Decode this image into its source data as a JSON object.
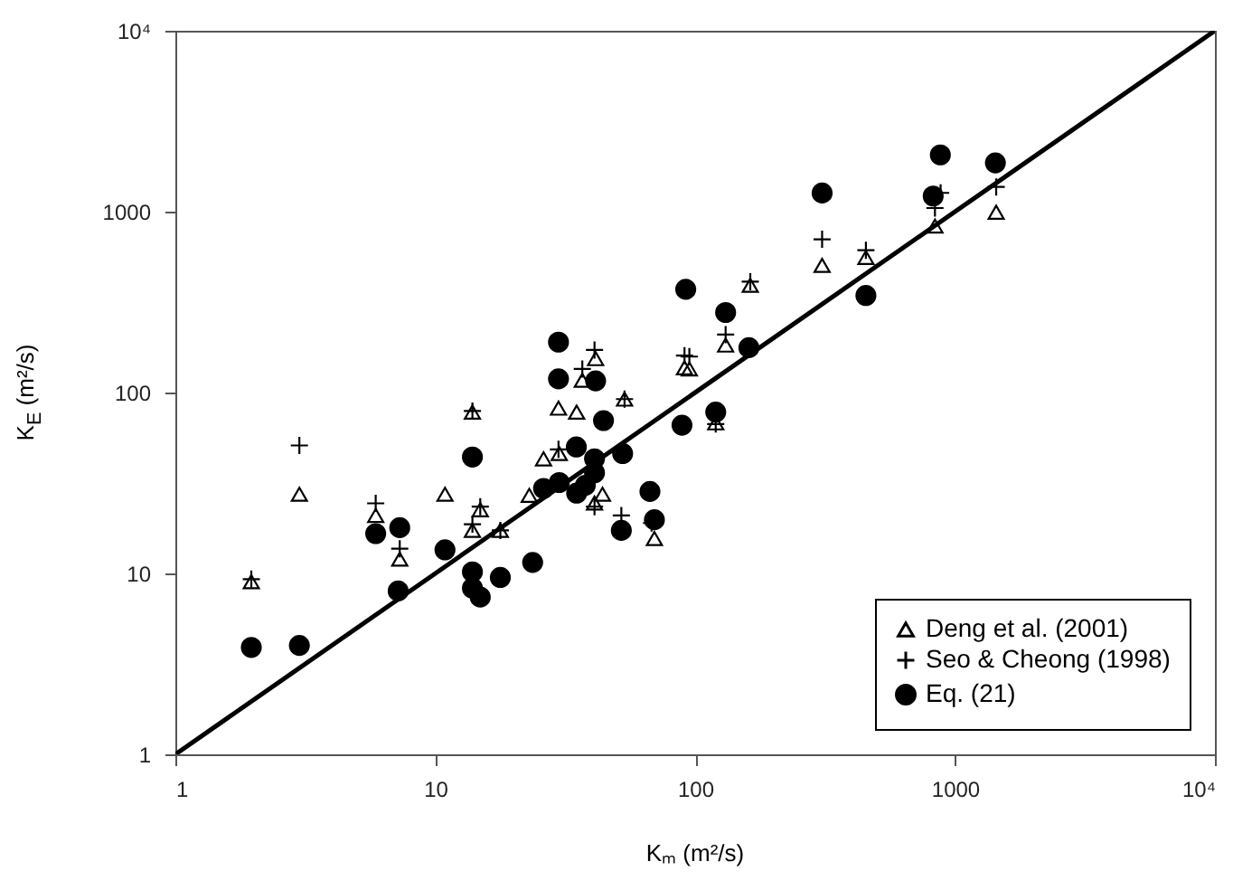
{
  "chart_data": {
    "type": "scatter",
    "xlabel": "Kₘ (m²/s)",
    "ylabel": "K$_{E}$ (m²/s)",
    "log": "xy",
    "xlim": [
      1,
      10000
    ],
    "ylim": [
      1,
      10000
    ],
    "xticks": [
      1,
      10,
      100,
      1000,
      {
        "value": 10000,
        "label": "10⁴"
      }
    ],
    "yticks": [
      1,
      10,
      100,
      1000,
      {
        "value": 10000,
        "label": "10⁴"
      }
    ],
    "grid": false,
    "legend": "bottom right",
    "series": [
      {
        "name": "Deng et al. (2001)",
        "color": "#000000",
        "marker": "triangle",
        "x": [
          1.96,
          3.0,
          5.9,
          7.3,
          10.9,
          13.9,
          13.9,
          14.9,
          17.8,
          23,
          26.1,
          29.8,
          30,
          35,
          36.8,
          41.4,
          44,
          41,
          53.5,
          69.7,
          91,
          95,
          131,
          120,
          163,
          308,
          454,
          837,
          1440
        ],
        "values": [
          9.0,
          27.4,
          20.9,
          12,
          27.4,
          78,
          17.3,
          22.5,
          17.3,
          27,
          43,
          82,
          46,
          78,
          117,
          154,
          27.4,
          24.5,
          92,
          15.6,
          137,
          135,
          183,
          68,
          392,
          505,
          558,
          832,
          993
        ]
      },
      {
        "name": "Seo & Cheong (1998)",
        "color": "#000000",
        "marker": "cross",
        "x": [
          1.96,
          3.0,
          5.9,
          7.3,
          13.9,
          13.9,
          14.9,
          17.8,
          29.8,
          36.8,
          41,
          41,
          53.5,
          52,
          68,
          91,
          95,
          131,
          120,
          163,
          308,
          454,
          837,
          880,
          1440
        ],
        "values": [
          9.3,
          51,
          24.4,
          13.7,
          18.7,
          79,
          23.4,
          17.3,
          48.5,
          135,
          172,
          23.4,
          92,
          20.9,
          19,
          160,
          158,
          209,
          67,
          410,
          703,
          612,
          1047,
          1270,
          1370
        ]
      },
      {
        "name": "Eq. (21)",
        "color": "#000000",
        "marker": "circle",
        "x": [
          1.96,
          3.0,
          5.9,
          7.3,
          7.2,
          10.9,
          13.9,
          13.9,
          13.9,
          14.9,
          17.8,
          23.7,
          26.1,
          29.8,
          29.8,
          30,
          34.9,
          35,
          37.8,
          41.4,
          41,
          41,
          44.4,
          52.6,
          52,
          67,
          69.7,
          89,
          92,
          131,
          120,
          161,
          308,
          454,
          824,
          878,
          1430
        ],
        "values": [
          3.9,
          4.0,
          16.6,
          17.9,
          8.0,
          13.5,
          44,
          10.2,
          8.3,
          7.4,
          9.5,
          11.5,
          29.5,
          190,
          119,
          31.8,
          50,
          27.8,
          30.7,
          116,
          43,
          36,
          70,
          46,
          17.3,
          28.4,
          19.8,
          66,
          372,
          277,
          78,
          177,
          1268,
          344,
          1220,
          2060,
          1860
        ]
      },
      {
        "type": "line",
        "color": "#000000",
        "marker": "none",
        "line_style": "solid",
        "x": [
          1,
          10000
        ],
        "values": [
          1,
          10000
        ]
      }
    ]
  }
}
